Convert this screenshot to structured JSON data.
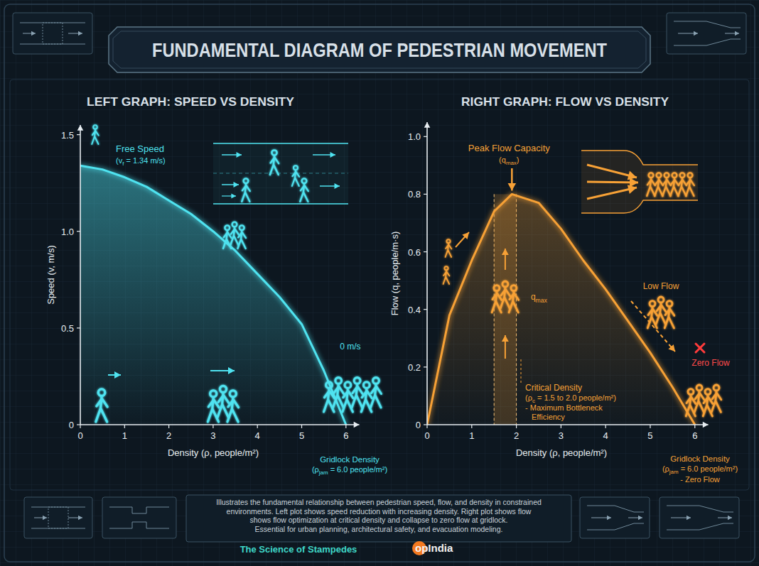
{
  "page": {
    "title": "FUNDAMENTAL DIAGRAM OF PEDESTRIAN MOVEMENT",
    "caption": [
      "Illustrates the fundamental relationship between pedestrian speed, flow, and density in constrained",
      "environments. Left plot shows speed reduction with increasing density. Right plot shows flow",
      "shows flow optimization at critical density and collapse to zero flow at gridlock.",
      "Essential for urban planning, architectural safety, and evacuation modeling."
    ],
    "footer": "The Science of Stampedes",
    "brand": "opIndia"
  },
  "chart_data": [
    {
      "type": "area",
      "title": "LEFT GRAPH: SPEED VS DENSITY",
      "x_label": "Density (ρ, people/m²)",
      "y_label": "Speed (v, m/s)",
      "color": "#4fe3f0",
      "x": [
        0,
        0.5,
        1,
        1.5,
        2,
        2.5,
        3,
        3.5,
        4,
        4.5,
        5,
        5.5,
        6
      ],
      "values": [
        1.34,
        1.32,
        1.28,
        1.23,
        1.16,
        1.09,
        1.0,
        0.9,
        0.78,
        0.66,
        0.52,
        0.28,
        0
      ],
      "xlim": [
        0,
        6.3
      ],
      "ylim": [
        0,
        1.55
      ],
      "xticks": [
        0,
        1,
        2,
        3,
        4,
        5,
        6
      ],
      "yticks": [
        0,
        0.5,
        {
          "value": 1,
          "label": "1.0"
        },
        1.5
      ],
      "grid": false,
      "annotations": {
        "free_speed": "Free Speed",
        "free_speed_value": {
          "text": "(v",
          "sub": "f",
          "after": " = 1.34 m/s)"
        },
        "zero_speed": "0 m/s",
        "gridlock": "Gridlock Density",
        "gridlock_value": {
          "text": "(ρ",
          "sub": "jam",
          "after": " = 6.0 people/m²)"
        }
      }
    },
    {
      "type": "area",
      "title": "RIGHT GRAPH: FLOW VS DENSITY",
      "x_label": "Density (ρ, people/m²)",
      "y_label": "Flow (q, people/m·s)",
      "color": "#f7a136",
      "x": [
        0,
        0.5,
        1,
        1.5,
        1.9,
        2.5,
        3,
        3.5,
        4,
        4.5,
        5,
        5.5,
        6
      ],
      "values": [
        0,
        0.38,
        0.57,
        0.74,
        0.8,
        0.77,
        0.68,
        0.57,
        0.47,
        0.36,
        0.25,
        0.13,
        0
      ],
      "xlim": [
        0,
        6.3
      ],
      "ylim": [
        0,
        1.05
      ],
      "xticks": [
        0,
        1,
        2,
        3,
        4,
        5,
        6
      ],
      "yticks": [
        0,
        0.2,
        0.4,
        0.6,
        0.8,
        {
          "value": 1,
          "label": "1.0"
        }
      ],
      "grid": false,
      "critical_density": [
        1.5,
        2.0
      ],
      "annotations": {
        "peak": "Peak Flow Capacity",
        "peak_symbol": {
          "text": "(q",
          "sub": "max",
          "after": ")"
        },
        "band_symbol": {
          "text": "q",
          "sub": "max"
        },
        "critical": "Critical Density",
        "critical_value": {
          "text": "(ρ",
          "sub": "c",
          "after": " = 1.5 to 2.0 people/m²)"
        },
        "critical_note": [
          "- Maximum Bottleneck",
          "Efficiency"
        ],
        "low_flow": "Low Flow",
        "zero_flow": "Zero Flow",
        "gridlock": "Gridlock Density",
        "gridlock_value": {
          "text": "(ρ",
          "sub": "jam",
          "after": " = 6.0 people/m²)"
        },
        "gridlock_note": "- Zero Flow"
      }
    }
  ]
}
